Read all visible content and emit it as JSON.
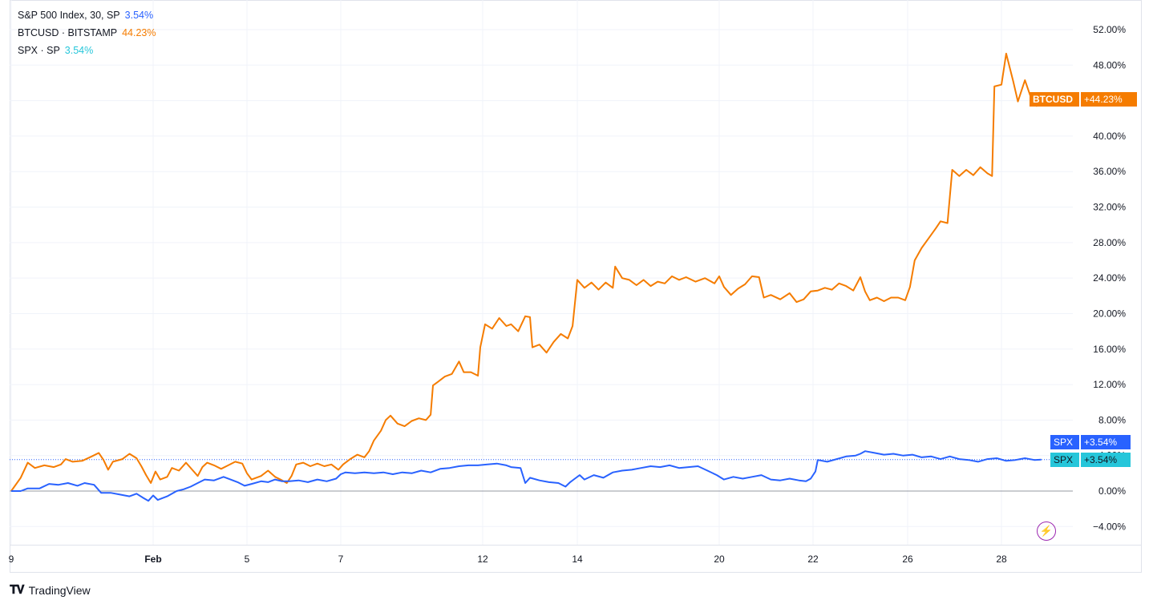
{
  "legend": {
    "main": {
      "label": "S&P 500 Index, 30, SP",
      "value": "3.54%"
    },
    "btc": {
      "label": "BTCUSD · BITSTAMP",
      "value": "44.23%"
    },
    "spx": {
      "label": "SPX · SP",
      "value": "3.54%"
    }
  },
  "tags": {
    "btc_name": "BTCUSD",
    "btc_value": "+44.23%",
    "spx1_name": "SPX",
    "spx1_value": "+3.54%",
    "spx2_name": "SPX",
    "spx2_value": "+3.54%"
  },
  "branding": {
    "logo_text": "TradingView"
  },
  "colors": {
    "btc": "#f57c00",
    "spx_main": "#2962ff",
    "spx_compare": "#26c6da",
    "grid": "#f0f3fa",
    "axis_text": "#131722"
  },
  "chart_data": {
    "type": "line",
    "y_unit": "%",
    "ylim": [
      -6,
      54
    ],
    "y_ticks": [
      "52.00%",
      "48.00%",
      "44.00%",
      "40.00%",
      "36.00%",
      "32.00%",
      "28.00%",
      "24.00%",
      "20.00%",
      "16.00%",
      "12.00%",
      "8.00%",
      "4.00%",
      "0.00%",
      "−4.00%"
    ],
    "x_ticks": [
      {
        "label": "9",
        "day": 0
      },
      {
        "label": "Feb",
        "day": 3
      },
      {
        "label": "5",
        "day": 5
      },
      {
        "label": "7",
        "day": 7
      },
      {
        "label": "12",
        "day": 10
      },
      {
        "label": "14",
        "day": 12
      },
      {
        "label": "20",
        "day": 15
      },
      {
        "label": "22",
        "day": 17
      },
      {
        "label": "26",
        "day": 19
      },
      {
        "label": "28",
        "day": 21
      }
    ],
    "grid": true,
    "series": [
      {
        "name": "BTCUSD",
        "color": "#f57c00",
        "points": [
          [
            0,
            0
          ],
          [
            0.2,
            1.5
          ],
          [
            0.35,
            3.2
          ],
          [
            0.5,
            2.6
          ],
          [
            0.7,
            2.9
          ],
          [
            0.9,
            2.7
          ],
          [
            1.05,
            3
          ],
          [
            1.15,
            3.6
          ],
          [
            1.3,
            3.3
          ],
          [
            1.5,
            3.4
          ],
          [
            1.7,
            3.9
          ],
          [
            1.85,
            4.3
          ],
          [
            1.95,
            3.5
          ],
          [
            2.05,
            2.4
          ],
          [
            2.15,
            3.3
          ],
          [
            2.35,
            3.6
          ],
          [
            2.5,
            4.2
          ],
          [
            2.65,
            3.7
          ],
          [
            2.75,
            2.8
          ],
          [
            2.85,
            1.8
          ],
          [
            2.95,
            0.9
          ],
          [
            3.05,
            2.2
          ],
          [
            3.15,
            1.3
          ],
          [
            3.3,
            1.6
          ],
          [
            3.4,
            2.6
          ],
          [
            3.55,
            2.3
          ],
          [
            3.7,
            3.2
          ],
          [
            3.85,
            2.3
          ],
          [
            3.95,
            1.7
          ],
          [
            4.05,
            2.7
          ],
          [
            4.15,
            3.2
          ],
          [
            4.3,
            2.9
          ],
          [
            4.45,
            2.5
          ],
          [
            4.6,
            2.9
          ],
          [
            4.75,
            3.3
          ],
          [
            4.9,
            3.1
          ],
          [
            5.0,
            2
          ],
          [
            5.1,
            1.3
          ],
          [
            5.3,
            1.7
          ],
          [
            5.45,
            2.3
          ],
          [
            5.6,
            1.6
          ],
          [
            5.75,
            1.2
          ],
          [
            5.85,
            0.9
          ],
          [
            5.95,
            1.7
          ],
          [
            6.05,
            3.0
          ],
          [
            6.2,
            3.2
          ],
          [
            6.35,
            2.8
          ],
          [
            6.5,
            3.1
          ],
          [
            6.65,
            2.8
          ],
          [
            6.8,
            3
          ],
          [
            6.95,
            2.4
          ],
          [
            7.05,
            3.0
          ],
          [
            7.2,
            3.6
          ],
          [
            7.35,
            4.1
          ],
          [
            7.5,
            3.8
          ],
          [
            7.6,
            4.5
          ],
          [
            7.7,
            5.7
          ],
          [
            7.85,
            6.8
          ],
          [
            7.95,
            8.0
          ],
          [
            8.05,
            8.5
          ],
          [
            8.2,
            7.6
          ],
          [
            8.35,
            7.3
          ],
          [
            8.5,
            7.9
          ],
          [
            8.65,
            8.2
          ],
          [
            8.8,
            8.0
          ],
          [
            8.9,
            8.6
          ],
          [
            8.95,
            11.9
          ],
          [
            9.05,
            12.3
          ],
          [
            9.2,
            12.9
          ],
          [
            9.35,
            13.2
          ],
          [
            9.5,
            14.6
          ],
          [
            9.6,
            13.4
          ],
          [
            9.75,
            13.4
          ],
          [
            9.9,
            13.0
          ],
          [
            9.95,
            16.2
          ],
          [
            10.05,
            18.8
          ],
          [
            10.2,
            18.3
          ],
          [
            10.35,
            19.5
          ],
          [
            10.5,
            18.6
          ],
          [
            10.6,
            18.8
          ],
          [
            10.75,
            18.0
          ],
          [
            10.9,
            19.7
          ],
          [
            11.0,
            19.6
          ],
          [
            11.05,
            16.2
          ],
          [
            11.2,
            16.5
          ],
          [
            11.35,
            15.6
          ],
          [
            11.5,
            16.8
          ],
          [
            11.65,
            17.7
          ],
          [
            11.8,
            17.2
          ],
          [
            11.9,
            18.6
          ],
          [
            12.0,
            23.8
          ],
          [
            12.15,
            22.9
          ],
          [
            12.3,
            23.5
          ],
          [
            12.45,
            22.7
          ],
          [
            12.6,
            23.5
          ],
          [
            12.75,
            22.9
          ],
          [
            12.8,
            25.3
          ],
          [
            12.95,
            24.0
          ],
          [
            13.1,
            23.8
          ],
          [
            13.25,
            23.2
          ],
          [
            13.4,
            23.8
          ],
          [
            13.55,
            23.1
          ],
          [
            13.7,
            23.6
          ],
          [
            13.85,
            23.4
          ],
          [
            14.0,
            24.2
          ],
          [
            14.15,
            23.8
          ],
          [
            14.3,
            24.1
          ],
          [
            14.5,
            23.6
          ],
          [
            14.7,
            24.0
          ],
          [
            14.9,
            23.4
          ],
          [
            15.0,
            24.2
          ],
          [
            15.1,
            23.0
          ],
          [
            15.25,
            22.1
          ],
          [
            15.4,
            22.8
          ],
          [
            15.55,
            23.3
          ],
          [
            15.7,
            24.2
          ],
          [
            15.85,
            24.1
          ],
          [
            15.95,
            21.8
          ],
          [
            16.1,
            22.1
          ],
          [
            16.3,
            21.6
          ],
          [
            16.5,
            22.3
          ],
          [
            16.65,
            21.3
          ],
          [
            16.8,
            21.6
          ],
          [
            16.95,
            22.5
          ],
          [
            17.1,
            22.6
          ],
          [
            17.25,
            22.9
          ],
          [
            17.4,
            22.7
          ],
          [
            17.55,
            23.4
          ],
          [
            17.7,
            23.1
          ],
          [
            17.85,
            22.6
          ],
          [
            18.0,
            24.1
          ],
          [
            18.1,
            22.5
          ],
          [
            18.2,
            21.5
          ],
          [
            18.35,
            21.8
          ],
          [
            18.5,
            21.4
          ],
          [
            18.65,
            21.8
          ],
          [
            18.8,
            21.8
          ],
          [
            18.95,
            21.5
          ],
          [
            19.05,
            23.0
          ],
          [
            19.15,
            26.0
          ],
          [
            19.3,
            27.4
          ],
          [
            19.45,
            28.5
          ],
          [
            19.6,
            29.6
          ],
          [
            19.7,
            30.4
          ],
          [
            19.85,
            30.2
          ],
          [
            19.95,
            36.2
          ],
          [
            20.1,
            35.5
          ],
          [
            20.25,
            36.2
          ],
          [
            20.4,
            35.6
          ],
          [
            20.55,
            36.5
          ],
          [
            20.7,
            35.8
          ],
          [
            20.8,
            35.5
          ],
          [
            20.85,
            45.6
          ],
          [
            21.0,
            45.8
          ],
          [
            21.1,
            49.3
          ],
          [
            21.25,
            46.2
          ],
          [
            21.35,
            43.9
          ],
          [
            21.5,
            46.3
          ],
          [
            21.65,
            44.0
          ],
          [
            21.75,
            43.4
          ],
          [
            21.85,
            44.2
          ]
        ]
      },
      {
        "name": "SPX",
        "color": "#2962ff",
        "points": [
          [
            0,
            0
          ],
          [
            0.2,
            0.0
          ],
          [
            0.35,
            0.3
          ],
          [
            0.6,
            0.3
          ],
          [
            0.8,
            0.8
          ],
          [
            1.0,
            0.7
          ],
          [
            1.2,
            0.9
          ],
          [
            1.4,
            0.6
          ],
          [
            1.55,
            0.9
          ],
          [
            1.75,
            0.7
          ],
          [
            1.9,
            -0.2
          ],
          [
            2.1,
            -0.2
          ],
          [
            2.3,
            -0.4
          ],
          [
            2.5,
            -0.6
          ],
          [
            2.65,
            -0.3
          ],
          [
            2.8,
            -0.8
          ],
          [
            2.9,
            -1.1
          ],
          [
            3.0,
            -0.5
          ],
          [
            3.1,
            -1.0
          ],
          [
            3.3,
            -0.6
          ],
          [
            3.5,
            0.0
          ],
          [
            3.65,
            0.2
          ],
          [
            3.8,
            0.5
          ],
          [
            3.95,
            0.9
          ],
          [
            4.1,
            1.3
          ],
          [
            4.3,
            1.2
          ],
          [
            4.5,
            1.6
          ],
          [
            4.65,
            1.3
          ],
          [
            4.8,
            1.0
          ],
          [
            4.95,
            0.6
          ],
          [
            5.1,
            0.8
          ],
          [
            5.3,
            1.1
          ],
          [
            5.45,
            1.0
          ],
          [
            5.6,
            1.3
          ],
          [
            5.75,
            1.1
          ],
          [
            5.9,
            1.1
          ],
          [
            6.1,
            1.2
          ],
          [
            6.3,
            1.0
          ],
          [
            6.5,
            1.3
          ],
          [
            6.7,
            1.1
          ],
          [
            6.9,
            1.4
          ],
          [
            7.0,
            1.9
          ],
          [
            7.1,
            2.1
          ],
          [
            7.3,
            2.0
          ],
          [
            7.5,
            2.1
          ],
          [
            7.7,
            2.0
          ],
          [
            7.9,
            2.1
          ],
          [
            8.1,
            1.9
          ],
          [
            8.3,
            2.1
          ],
          [
            8.5,
            2.0
          ],
          [
            8.7,
            2.3
          ],
          [
            8.9,
            2.1
          ],
          [
            9.1,
            2.5
          ],
          [
            9.3,
            2.6
          ],
          [
            9.5,
            2.8
          ],
          [
            9.7,
            2.9
          ],
          [
            9.9,
            2.9
          ],
          [
            10.1,
            3.0
          ],
          [
            10.3,
            3.1
          ],
          [
            10.5,
            2.9
          ],
          [
            10.6,
            2.7
          ],
          [
            10.8,
            2.6
          ],
          [
            10.9,
            0.9
          ],
          [
            11.0,
            1.5
          ],
          [
            11.2,
            1.2
          ],
          [
            11.4,
            1.0
          ],
          [
            11.6,
            0.9
          ],
          [
            11.75,
            0.5
          ],
          [
            11.85,
            1.0
          ],
          [
            11.95,
            1.4
          ],
          [
            12.05,
            1.8
          ],
          [
            12.15,
            1.3
          ],
          [
            12.35,
            1.8
          ],
          [
            12.55,
            1.5
          ],
          [
            12.75,
            2.1
          ],
          [
            12.95,
            2.3
          ],
          [
            13.15,
            2.4
          ],
          [
            13.35,
            2.6
          ],
          [
            13.55,
            2.8
          ],
          [
            13.75,
            2.7
          ],
          [
            13.95,
            2.9
          ],
          [
            14.15,
            2.6
          ],
          [
            14.35,
            2.7
          ],
          [
            14.55,
            2.8
          ],
          [
            14.75,
            2.3
          ],
          [
            14.95,
            1.8
          ],
          [
            15.1,
            1.3
          ],
          [
            15.3,
            1.6
          ],
          [
            15.5,
            1.4
          ],
          [
            15.7,
            1.6
          ],
          [
            15.9,
            1.8
          ],
          [
            16.1,
            1.3
          ],
          [
            16.3,
            1.2
          ],
          [
            16.5,
            1.4
          ],
          [
            16.7,
            1.2
          ],
          [
            16.85,
            1.1
          ],
          [
            16.95,
            1.4
          ],
          [
            17.05,
            2.2
          ],
          [
            17.1,
            3.5
          ],
          [
            17.3,
            3.3
          ],
          [
            17.5,
            3.6
          ],
          [
            17.7,
            3.9
          ],
          [
            17.9,
            4.0
          ],
          [
            18.0,
            4.2
          ],
          [
            18.1,
            4.5
          ],
          [
            18.3,
            4.3
          ],
          [
            18.5,
            4.1
          ],
          [
            18.7,
            4.2
          ],
          [
            18.9,
            4.0
          ],
          [
            19.1,
            4.1
          ],
          [
            19.3,
            3.8
          ],
          [
            19.5,
            3.9
          ],
          [
            19.7,
            3.6
          ],
          [
            19.9,
            3.9
          ],
          [
            20.1,
            3.6
          ],
          [
            20.3,
            3.5
          ],
          [
            20.5,
            3.3
          ],
          [
            20.7,
            3.6
          ],
          [
            20.9,
            3.7
          ],
          [
            21.1,
            3.4
          ],
          [
            21.3,
            3.5
          ],
          [
            21.5,
            3.7
          ],
          [
            21.7,
            3.5
          ],
          [
            21.85,
            3.54
          ]
        ]
      }
    ]
  }
}
